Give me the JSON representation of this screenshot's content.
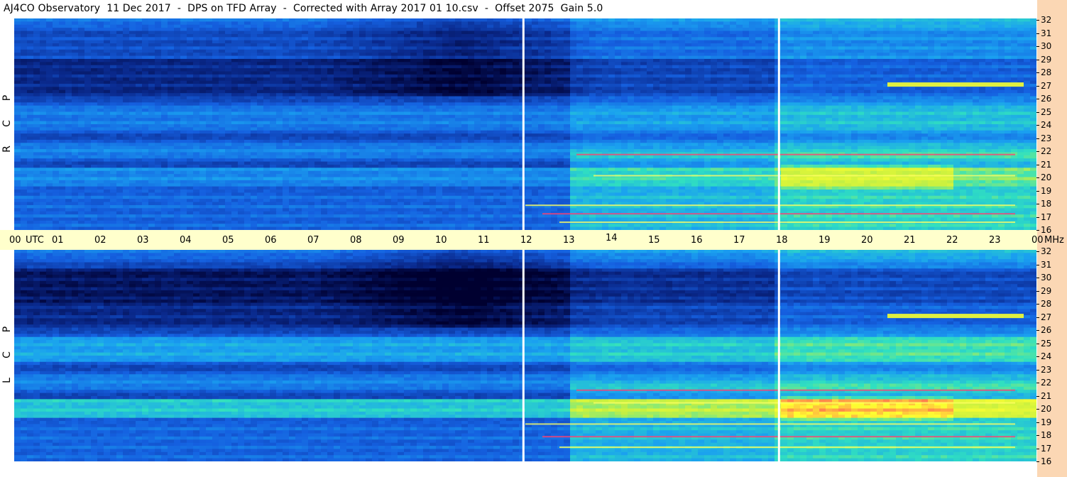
{
  "title": "AJ4CO Observatory  11 Dec 2017  -  DPS on TFD Array  -  Corrected with Array 2017 01 10.csv  -  Offset 2075  Gain 5.0",
  "chart_data": [
    {
      "type": "heatmap",
      "panel": "RCP",
      "ylabel": "R C P",
      "x_range_hours_utc": [
        0,
        24
      ],
      "y_range_mhz": [
        16,
        32
      ],
      "y_ticks": [
        "32",
        "31",
        "30",
        "29",
        "28",
        "27",
        "26",
        "25",
        "24",
        "23",
        "22",
        "21",
        "20",
        "19",
        "18",
        "17",
        "16"
      ],
      "data_gaps_utc_hours": [
        11.93,
        17.93
      ]
    },
    {
      "type": "heatmap",
      "panel": "LCP",
      "ylabel": "L C P",
      "x_range_hours_utc": [
        0,
        24
      ],
      "y_range_mhz": [
        16,
        32
      ],
      "y_ticks": [
        "32",
        "31",
        "30",
        "29",
        "28",
        "27",
        "26",
        "25",
        "24",
        "23",
        "22",
        "21",
        "20",
        "19",
        "18",
        "17",
        "16"
      ],
      "data_gaps_utc_hours": [
        11.93,
        17.93
      ]
    }
  ],
  "time_axis": {
    "labels": [
      "00",
      "UTC",
      "01",
      "02",
      "03",
      "04",
      "05",
      "06",
      "07",
      "08",
      "09",
      "10",
      "11",
      "12",
      "13",
      "14",
      "15",
      "16",
      "17",
      "18",
      "19",
      "20",
      "21",
      "22",
      "23",
      "00",
      "MHz"
    ]
  },
  "colors": {
    "background": "#ffffff",
    "time_axis_band": "#ffffcc",
    "right_strip": "#fbd7b4",
    "colormap": [
      "#000030",
      "#0a2a8e",
      "#1560e0",
      "#1aa0f0",
      "#30e0c0",
      "#c8f040",
      "#ffff30",
      "#ff3060"
    ]
  }
}
